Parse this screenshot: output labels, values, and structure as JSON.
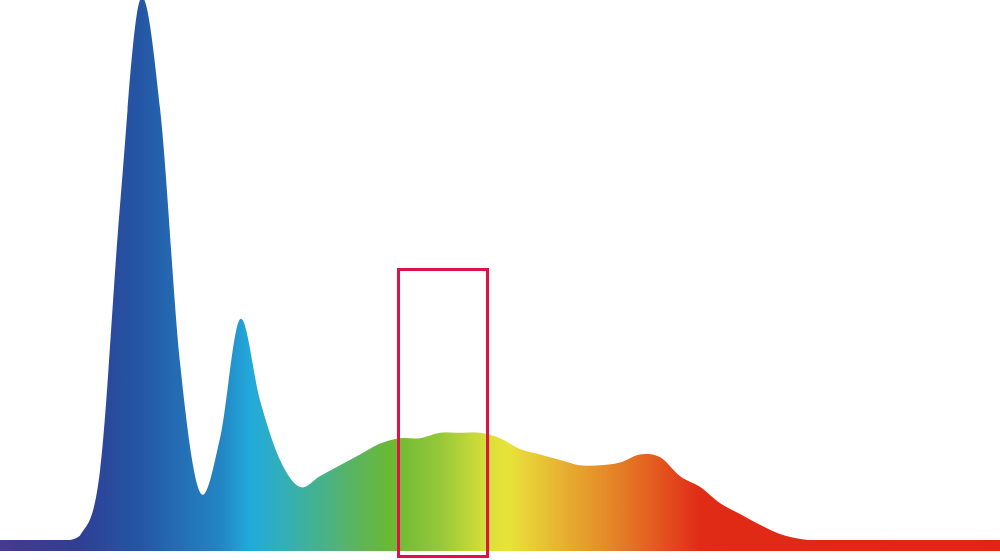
{
  "chart_data": {
    "type": "area",
    "title": "",
    "xlabel": "",
    "ylabel": "",
    "axes_visible": false,
    "grid": false,
    "legend": "none",
    "fill": "spectral-gradient",
    "sample_spacing": "uniform",
    "values": [
      0,
      0,
      0,
      0,
      0.01,
      0.13,
      0.62,
      1.0,
      0.8,
      0.33,
      0.09,
      0.19,
      0.41,
      0.26,
      0.15,
      0.1,
      0.12,
      0.14,
      0.16,
      0.18,
      0.19,
      0.19,
      0.2,
      0.2,
      0.2,
      0.19,
      0.17,
      0.16,
      0.15,
      0.14,
      0.14,
      0.145,
      0.16,
      0.155,
      0.12,
      0.1,
      0.07,
      0.05,
      0.03,
      0.013,
      0.004,
      0,
      0,
      0,
      0,
      0,
      0,
      0,
      0,
      0,
      0
    ],
    "gradient_colors": [
      "#47398f",
      "#2f3f94",
      "#2456a5",
      "#2385c3",
      "#22a9dc",
      "#35b0b0",
      "#5db55a",
      "#6ab833",
      "#95c83a",
      "#dce03a",
      "#e8e23a",
      "#e6aa30",
      "#e59029",
      "#e46a22",
      "#e02b16",
      "#e02514"
    ],
    "highlight": {
      "color": "#e0104a"
    }
  }
}
